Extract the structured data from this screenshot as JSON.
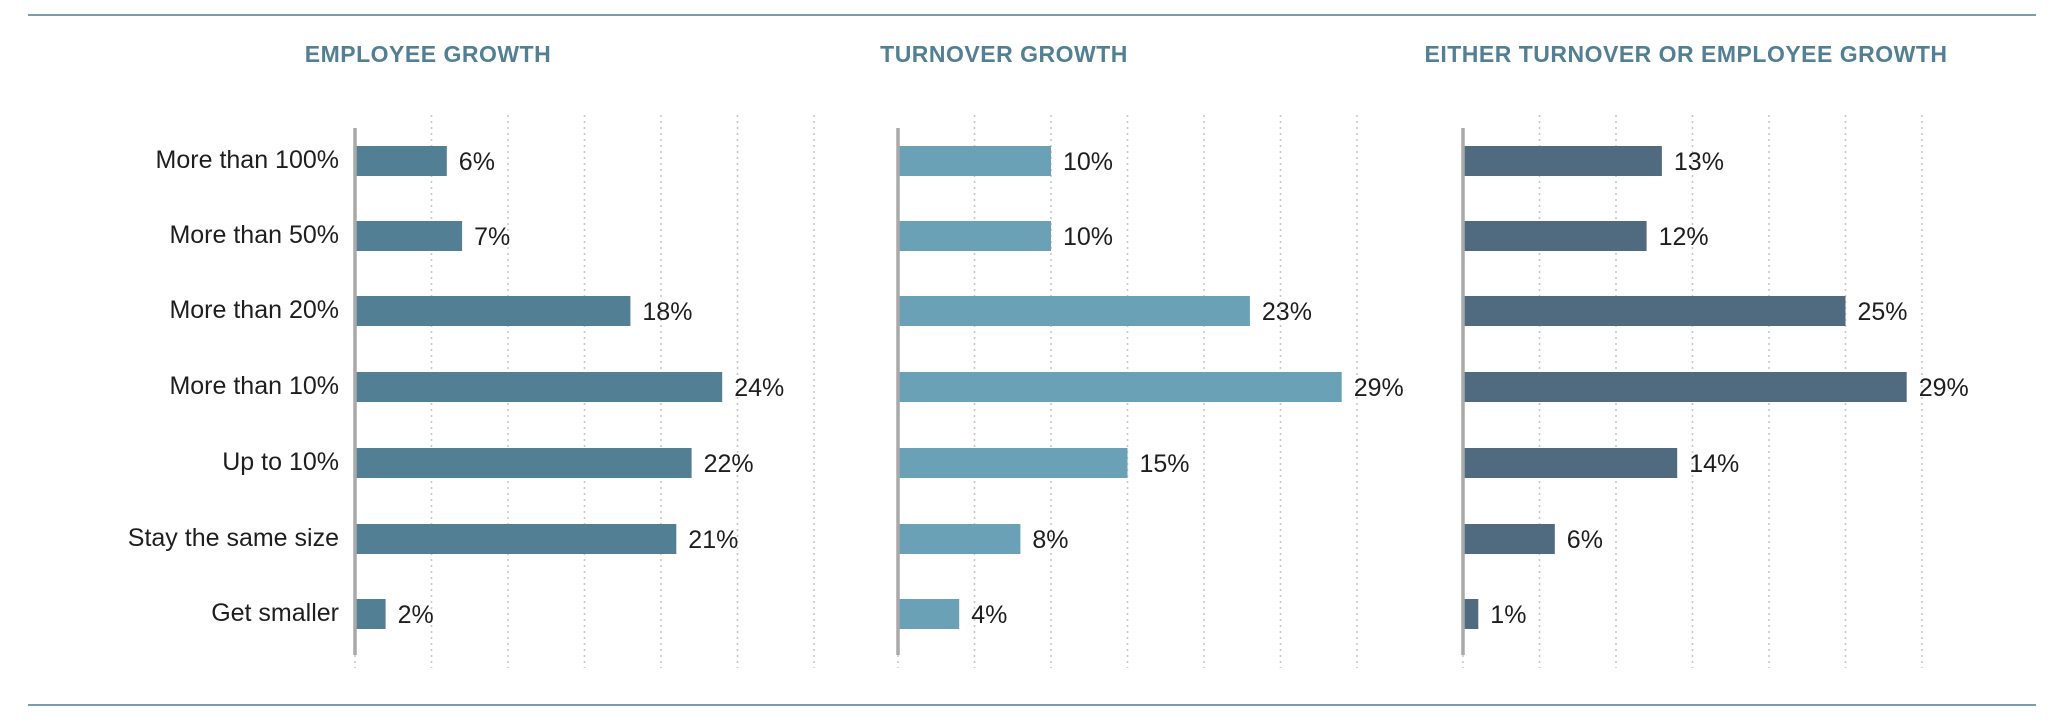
{
  "chart_data": [
    {
      "type": "bar",
      "orientation": "horizontal",
      "title": "EMPLOYEE GROWTH",
      "categories": [
        "More than 100%",
        "More than 50%",
        "More than 20%",
        "More than 10%",
        "Up to 10%",
        "Stay the same size",
        "Get smaller"
      ],
      "values": [
        6,
        7,
        18,
        24,
        22,
        21,
        2
      ],
      "value_labels": [
        "6%",
        "7%",
        "18%",
        "24%",
        "22%",
        "21%",
        "2%"
      ],
      "xlim": [
        0,
        30
      ],
      "grid": true,
      "color": "#527f94"
    },
    {
      "type": "bar",
      "orientation": "horizontal",
      "title": "TURNOVER GROWTH",
      "categories": [
        "More than 100%",
        "More than 50%",
        "More than 20%",
        "More than 10%",
        "Up to 10%",
        "Stay the same size",
        "Get smaller"
      ],
      "values": [
        10,
        10,
        23,
        29,
        15,
        8,
        4
      ],
      "value_labels": [
        "10%",
        "10%",
        "23%",
        "29%",
        "15%",
        "8%",
        "4%"
      ],
      "xlim": [
        0,
        30
      ],
      "grid": true,
      "color": "#6ba1b6"
    },
    {
      "type": "bar",
      "orientation": "horizontal",
      "title": "EITHER TURNOVER OR EMPLOYEE GROWTH",
      "categories": [
        "More than 100%",
        "More than 50%",
        "More than 20%",
        "More than 10%",
        "Up to 10%",
        "Stay the same size",
        "Get smaller"
      ],
      "values": [
        13,
        12,
        25,
        29,
        14,
        6,
        1
      ],
      "value_labels": [
        "13%",
        "12%",
        "25%",
        "29%",
        "14%",
        "6%",
        "1%"
      ],
      "xlim": [
        0,
        30
      ],
      "grid": true,
      "color": "#506b80"
    }
  ],
  "colors": {
    "title": "#527f94",
    "axis": "#a9a9a9",
    "grid": "#c9c9c9",
    "rule": "#7f9cab",
    "text": "#1e1e1e"
  }
}
